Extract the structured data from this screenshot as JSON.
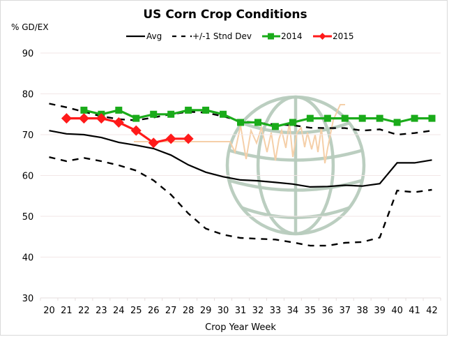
{
  "chart_data": {
    "type": "line",
    "title": "US Corn Crop Conditions",
    "xlabel": "Crop Year Week",
    "ylabel": "% GD/EX",
    "ylim": [
      30,
      90
    ],
    "yticks": [
      30,
      40,
      50,
      60,
      70,
      80,
      90
    ],
    "grid": true,
    "legend_position": "top",
    "categories": [
      20,
      21,
      22,
      23,
      24,
      25,
      26,
      27,
      28,
      29,
      30,
      31,
      32,
      33,
      34,
      35,
      36,
      37,
      38,
      39,
      40,
      41,
      42
    ],
    "series": [
      {
        "name": "Avg",
        "style": "solid",
        "color": "#000000",
        "marker": "none",
        "values": [
          71.0,
          70.2,
          70.0,
          69.3,
          68.1,
          67.4,
          66.6,
          65.0,
          62.6,
          60.8,
          59.7,
          58.9,
          58.7,
          58.3,
          57.9,
          57.2,
          57.3,
          57.6,
          57.4,
          58.0,
          63.1,
          63.1,
          63.8
        ]
      },
      {
        "name": "+/-1 Stnd Dev",
        "style": "dashed",
        "color": "#000000",
        "marker": "none",
        "values_upper": [
          77.6,
          76.7,
          75.6,
          74.5,
          73.8,
          73.5,
          74.2,
          75.0,
          75.6,
          75.4,
          74.5,
          73.3,
          72.9,
          72.5,
          72.3,
          71.7,
          71.6,
          71.6,
          71.0,
          71.3,
          70.0,
          70.4,
          71.0
        ],
        "values_lower": [
          64.5,
          63.5,
          64.3,
          63.5,
          62.5,
          61.2,
          58.8,
          55.3,
          50.7,
          47.0,
          45.5,
          44.7,
          44.5,
          44.3,
          43.6,
          42.8,
          42.8,
          43.5,
          43.7,
          44.8,
          56.3,
          55.9,
          56.5
        ]
      },
      {
        "name": "2014",
        "style": "solid",
        "color": "#1aab1a",
        "marker": "square",
        "values": [
          null,
          null,
          76,
          75,
          76,
          74,
          75,
          75,
          76,
          76,
          75,
          73,
          73,
          72,
          73,
          74,
          74,
          74,
          74,
          74,
          73,
          74,
          74
        ]
      },
      {
        "name": "2015",
        "style": "solid",
        "color": "#ff1a1a",
        "marker": "diamond",
        "values": [
          null,
          74,
          74,
          74,
          73,
          71,
          68,
          69,
          69,
          null,
          null,
          null,
          null,
          null,
          null,
          null,
          null,
          null,
          null,
          null,
          null,
          null,
          null
        ]
      }
    ]
  },
  "colors": {
    "watermark_globe": "#b7cbbd",
    "watermark_line": "#f5cfa8",
    "gridline": "#f2e6e6"
  }
}
